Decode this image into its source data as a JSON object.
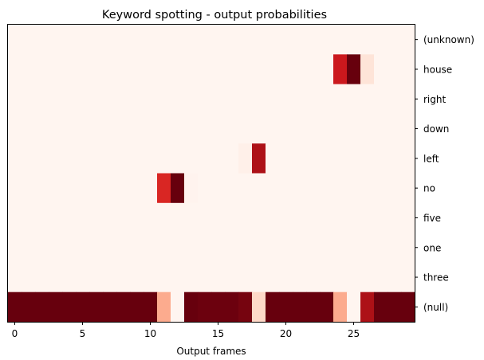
{
  "chart_data": {
    "type": "heatmap",
    "title": "Keyword spotting - output probabilities",
    "xlabel": "Output frames",
    "ylabel": "",
    "colormap": "Reds",
    "vmin": 0,
    "vmax": 1,
    "x_frames": 30,
    "xlim": [
      -0.5,
      29.5
    ],
    "x_ticks": [
      0,
      5,
      10,
      15,
      20,
      25
    ],
    "x_tick_labels": [
      "0",
      "5",
      "10",
      "15",
      "20",
      "25"
    ],
    "y_position": "right",
    "rows": [
      "(unknown)",
      "house",
      "right",
      "down",
      "left",
      "no",
      "five",
      "one",
      "three",
      "(null)"
    ],
    "values": [
      [
        0,
        0,
        0,
        0,
        0,
        0,
        0,
        0,
        0,
        0,
        0,
        0,
        0,
        0,
        0,
        0,
        0,
        0,
        0,
        0,
        0,
        0,
        0,
        0,
        0,
        0,
        0,
        0,
        0,
        0
      ],
      [
        0,
        0,
        0,
        0,
        0,
        0,
        0,
        0,
        0,
        0,
        0,
        0,
        0,
        0,
        0,
        0,
        0,
        0,
        0,
        0,
        0,
        0,
        0,
        0,
        0.75,
        1,
        0.1,
        0,
        0,
        0
      ],
      [
        0,
        0,
        0,
        0,
        0,
        0,
        0,
        0,
        0,
        0,
        0,
        0,
        0,
        0,
        0,
        0,
        0,
        0,
        0,
        0,
        0,
        0,
        0,
        0,
        0,
        0,
        0,
        0,
        0,
        0
      ],
      [
        0,
        0,
        0,
        0,
        0,
        0,
        0,
        0,
        0,
        0,
        0,
        0,
        0,
        0,
        0,
        0,
        0,
        0,
        0,
        0,
        0,
        0,
        0,
        0,
        0,
        0,
        0,
        0,
        0,
        0
      ],
      [
        0,
        0,
        0,
        0,
        0,
        0,
        0,
        0,
        0,
        0,
        0,
        0,
        0,
        0,
        0,
        0,
        0,
        0.03,
        0.85,
        0,
        0,
        0,
        0,
        0,
        0,
        0,
        0,
        0,
        0,
        0
      ],
      [
        0,
        0,
        0,
        0,
        0,
        0,
        0,
        0,
        0,
        0,
        0,
        0.7,
        1,
        0.01,
        0,
        0,
        0,
        0,
        0,
        0,
        0,
        0,
        0,
        0,
        0,
        0,
        0,
        0,
        0,
        0
      ],
      [
        0,
        0,
        0,
        0,
        0,
        0,
        0,
        0,
        0,
        0,
        0,
        0,
        0,
        0,
        0,
        0,
        0,
        0,
        0,
        0,
        0,
        0,
        0,
        0,
        0,
        0,
        0,
        0,
        0,
        0
      ],
      [
        0,
        0,
        0,
        0,
        0,
        0,
        0,
        0,
        0,
        0,
        0,
        0,
        0,
        0,
        0,
        0,
        0,
        0,
        0,
        0,
        0,
        0,
        0,
        0,
        0,
        0,
        0,
        0,
        0,
        0
      ],
      [
        0,
        0,
        0,
        0,
        0,
        0,
        0,
        0,
        0,
        0,
        0,
        0,
        0,
        0,
        0,
        0,
        0,
        0,
        0,
        0,
        0,
        0,
        0,
        0,
        0,
        0,
        0,
        0,
        0,
        0
      ],
      [
        1,
        1,
        1,
        1,
        1,
        1,
        1,
        1,
        1,
        1,
        1,
        0.3,
        0,
        1,
        0.99,
        0.99,
        0.99,
        0.97,
        0.15,
        1,
        1,
        1,
        1,
        1,
        0.3,
        0,
        0.85,
        1,
        1,
        1
      ]
    ]
  }
}
